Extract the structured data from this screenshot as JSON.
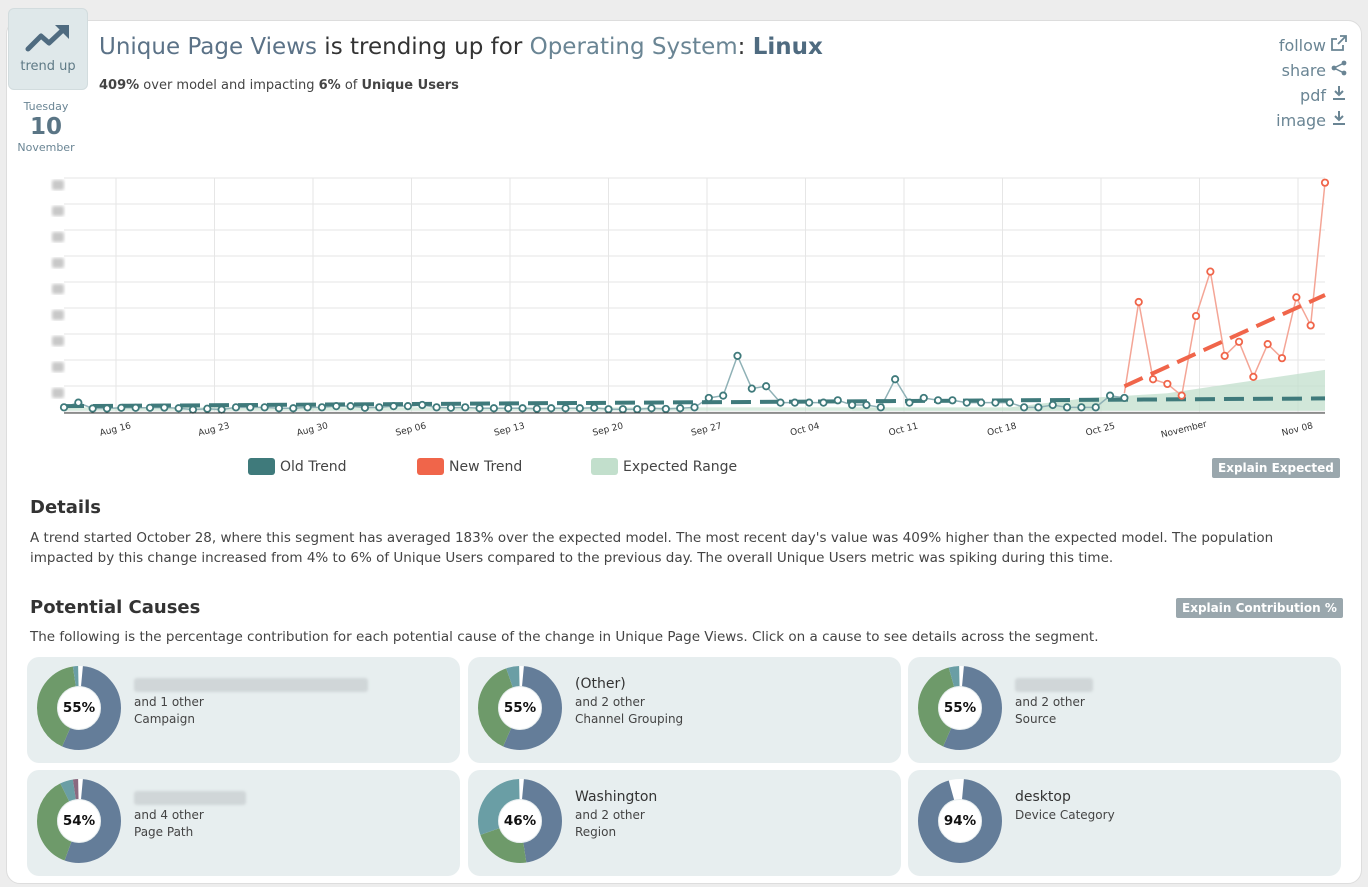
{
  "badge": {
    "label": "trend up"
  },
  "date": {
    "weekday": "Tuesday",
    "day": "10",
    "month": "November"
  },
  "title": {
    "metric": "Unique Page Views",
    "middle": " is trending up for ",
    "dimension": "Operating System",
    "colon": ": ",
    "value": "Linux"
  },
  "subtitle": {
    "pct_model": "409%",
    "text1": " over model and impacting ",
    "pct_impact": "6%",
    "text2": " of ",
    "population": "Unique Users"
  },
  "actions": {
    "follow": "follow",
    "share": "share",
    "pdf": "pdf",
    "image": "image"
  },
  "colors": {
    "old_trend": "#3f7a7b",
    "new_trend": "#f0654a",
    "expected": "#c2dfcc",
    "donut_main": "#647d99",
    "donut_second": "#6e9a6a",
    "donut_third": "#6a9ea5"
  },
  "chart_data": {
    "type": "line",
    "x_tick_labels": [
      "Aug 16",
      "Aug 23",
      "Aug 30",
      "Sep 06",
      "Sep 13",
      "Sep 20",
      "Sep 27",
      "Oct 04",
      "Oct 11",
      "Oct 18",
      "Oct 25",
      "November",
      "Nov 08"
    ],
    "ylim": [
      0,
      100
    ],
    "grid": true,
    "series": [
      {
        "name": "Old Trend",
        "values": [
          2,
          4,
          1.5,
          1.5,
          1.8,
          1.8,
          1.8,
          1.9,
          1.6,
          1,
          1.4,
          1,
          2,
          2,
          2,
          1.6,
          1.6,
          2,
          2,
          2.5,
          2.5,
          1.8,
          2,
          2.5,
          2.5,
          3,
          2,
          1.8,
          2,
          1.6,
          1.6,
          1.6,
          1.6,
          1.4,
          1.6,
          1.6,
          1.6,
          1.8,
          1.2,
          1.2,
          1.2,
          1.6,
          1.3,
          1.6,
          2,
          6,
          7,
          24,
          10,
          11,
          4,
          4,
          4,
          4,
          5,
          3,
          3,
          2,
          14,
          4,
          6,
          5,
          5,
          4,
          4,
          4,
          4,
          2,
          2,
          3,
          2,
          2,
          2,
          7,
          6
        ]
      },
      {
        "name": "New Trend",
        "values": [
          8,
          47,
          14,
          12,
          7,
          41,
          60,
          24,
          30,
          15,
          29,
          23,
          49,
          37,
          98
        ]
      }
    ],
    "old_trend_line": [
      2.5,
      5.8
    ],
    "new_trend_line": [
      11,
      50
    ],
    "expected_range": {
      "lower": 0.5,
      "upper": [
        2,
        2,
        2,
        6,
        8,
        13,
        18
      ]
    }
  },
  "legend": {
    "old": "Old Trend",
    "new": "New Trend",
    "expected": "Expected Range"
  },
  "explain_expected": "Explain Expected",
  "details": {
    "heading": "Details",
    "text": "A trend started October 28, where this segment has averaged 183% over the expected model. The most recent day's value was 409% higher than the expected model. The population impacted by this change increased from 4% to 6% of Unique Users compared to the previous day. The overall Unique Users metric was spiking during this time."
  },
  "causes_section": {
    "heading": "Potential Causes",
    "explain_btn": "Explain Contribution %",
    "text": "The following is the percentage contribution for each potential cause of the change in Unique Page Views. Click on a cause to see details across the segment."
  },
  "causes": [
    {
      "pct": "55%",
      "pct_value": 55,
      "name": "",
      "other": "and 1 other",
      "category": "Campaign"
    },
    {
      "pct": "55%",
      "pct_value": 55,
      "name": "(Other)",
      "other": "and 2 other",
      "category": "Channel Grouping"
    },
    {
      "pct": "55%",
      "pct_value": 55,
      "name": "",
      "other": "and 2 other",
      "category": "Source"
    },
    {
      "pct": "54%",
      "pct_value": 54,
      "name": "",
      "other": "and 4 other",
      "category": "Page Path"
    },
    {
      "pct": "46%",
      "pct_value": 46,
      "name": "Washington",
      "other": "and 2 other",
      "category": "Region"
    },
    {
      "pct": "94%",
      "pct_value": 94,
      "name": "desktop",
      "other": "",
      "category": "Device Category"
    }
  ]
}
